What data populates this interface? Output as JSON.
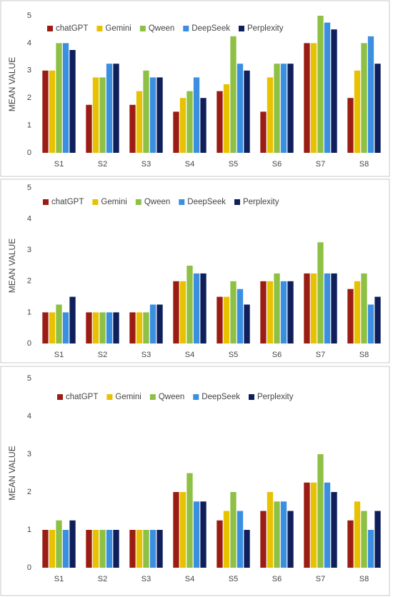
{
  "chart_data": [
    {
      "type": "bar",
      "ylabel": "MEAN VALUE",
      "categories": [
        "S1",
        "S2",
        "S3",
        "S4",
        "S5",
        "S6",
        "S7",
        "S8"
      ],
      "ylim": [
        0,
        5
      ],
      "yticks": [
        0,
        1,
        2,
        3,
        4,
        5
      ],
      "series": [
        {
          "name": "chatGPT",
          "color": "#9b1c12",
          "values": [
            3,
            1.75,
            1.75,
            1.5,
            2.25,
            1.5,
            4,
            2
          ]
        },
        {
          "name": "Gemini",
          "color": "#e8c100",
          "values": [
            3,
            2.75,
            2.25,
            2,
            2.5,
            2.75,
            4,
            3
          ]
        },
        {
          "name": "Qween",
          "color": "#8dc044",
          "values": [
            4,
            2.75,
            3,
            2.25,
            4.25,
            3.25,
            5,
            4
          ]
        },
        {
          "name": "DeepSeek",
          "color": "#3b8fe0",
          "values": [
            4,
            3.25,
            2.75,
            2.75,
            3.25,
            3.25,
            4.75,
            4.25
          ]
        },
        {
          "name": "Perplexity",
          "color": "#0e1f5b",
          "values": [
            3.75,
            3.25,
            2.75,
            2,
            3,
            3.25,
            4.5,
            3.25
          ]
        }
      ]
    },
    {
      "type": "bar",
      "ylabel": "MEAN VALUE",
      "categories": [
        "S1",
        "S2",
        "S3",
        "S4",
        "S5",
        "S6",
        "S7",
        "S8"
      ],
      "ylim": [
        0,
        5
      ],
      "yticks": [
        0,
        1,
        2,
        3,
        4,
        5
      ],
      "series": [
        {
          "name": "chatGPT",
          "color": "#9b1c12",
          "values": [
            1,
            1,
            1,
            2,
            1.5,
            2,
            2.25,
            1.75
          ]
        },
        {
          "name": "Gemini",
          "color": "#e8c100",
          "values": [
            1,
            1,
            1,
            2,
            1.5,
            2,
            2.25,
            2
          ]
        },
        {
          "name": "Qween",
          "color": "#8dc044",
          "values": [
            1.25,
            1,
            1,
            2.5,
            2,
            2.25,
            3.25,
            2.25
          ]
        },
        {
          "name": "DeepSeek",
          "color": "#3b8fe0",
          "values": [
            1,
            1,
            1.25,
            2.25,
            1.75,
            2,
            2.25,
            1.25
          ]
        },
        {
          "name": "Perplexity",
          "color": "#0e1f5b",
          "values": [
            1.5,
            1,
            1.25,
            2.25,
            1.25,
            2,
            2.25,
            1.5
          ]
        }
      ]
    },
    {
      "type": "bar",
      "ylabel": "MEAN VALUE",
      "categories": [
        "S1",
        "S2",
        "S3",
        "S4",
        "S5",
        "S6",
        "S7",
        "S8"
      ],
      "ylim": [
        0,
        5
      ],
      "yticks": [
        0,
        1,
        2,
        3,
        4,
        5
      ],
      "series": [
        {
          "name": "chatGPT",
          "color": "#9b1c12",
          "values": [
            1,
            1,
            1,
            2,
            1.25,
            1.5,
            2.25,
            1.25
          ]
        },
        {
          "name": "Gemini",
          "color": "#e8c100",
          "values": [
            1,
            1,
            1,
            2,
            1.5,
            2,
            2.25,
            1.75
          ]
        },
        {
          "name": "Qween",
          "color": "#8dc044",
          "values": [
            1.25,
            1,
            1,
            2.5,
            2,
            1.75,
            3,
            1.5
          ]
        },
        {
          "name": "DeepSeek",
          "color": "#3b8fe0",
          "values": [
            1,
            1,
            1,
            1.75,
            1.5,
            1.75,
            2.25,
            1
          ]
        },
        {
          "name": "Perplexity",
          "color": "#0e1f5b",
          "values": [
            1.25,
            1,
            1,
            1.75,
            1,
            1.5,
            2,
            1.5
          ]
        }
      ]
    }
  ]
}
